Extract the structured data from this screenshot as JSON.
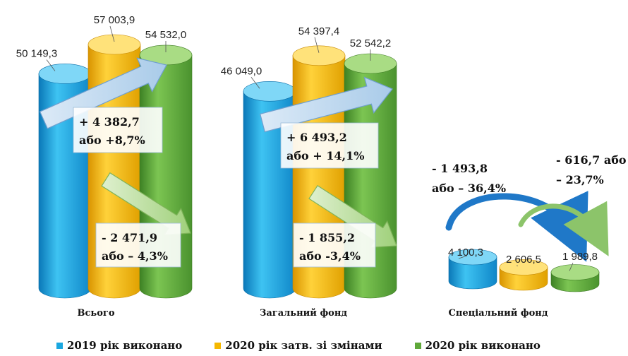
{
  "chart_data": {
    "type": "bar",
    "categories": [
      "Всього",
      "Загальний фонд",
      "Спеціальний фонд"
    ],
    "series": [
      {
        "name": "2019 рік виконано",
        "color": "#1aa7e0",
        "values": [
          50149.3,
          46049.0,
          4100.3
        ],
        "labels": [
          "50 149,3",
          "46 049,0",
          "4 100,3"
        ]
      },
      {
        "name": "2020 рік затв. зі змінами",
        "color": "#f5b800",
        "values": [
          57003.9,
          54397.4,
          2606.5
        ],
        "labels": [
          "57 003,9",
          "54 397,4",
          "2 606,5"
        ]
      },
      {
        "name": "2020 рік виконано",
        "color": "#5fa83a",
        "values": [
          54532.0,
          52542.2,
          1989.8
        ],
        "labels": [
          "54 532,0",
          "52 542,2",
          "1 989,8"
        ]
      }
    ],
    "annotations": [
      {
        "group": 0,
        "kind": "up",
        "line1": "+  4 382,7",
        "line2": "або +8,7%"
      },
      {
        "group": 0,
        "kind": "down",
        "line1": "-  2 471,9",
        "line2": "або – 4,3%"
      },
      {
        "group": 1,
        "kind": "up",
        "line1": "+  6 493,2",
        "line2": "або + 14,1%"
      },
      {
        "group": 1,
        "kind": "down",
        "line1": "- 1 855,2",
        "line2": "або -3,4%"
      },
      {
        "group": 2,
        "kind": "arc",
        "line1": "-  1 493,8",
        "line2": "або – 36,4%"
      },
      {
        "group": 2,
        "kind": "arc",
        "line1": "-  616,7 або",
        "line2": "– 23,7%"
      }
    ],
    "legend_position": "bottom"
  }
}
